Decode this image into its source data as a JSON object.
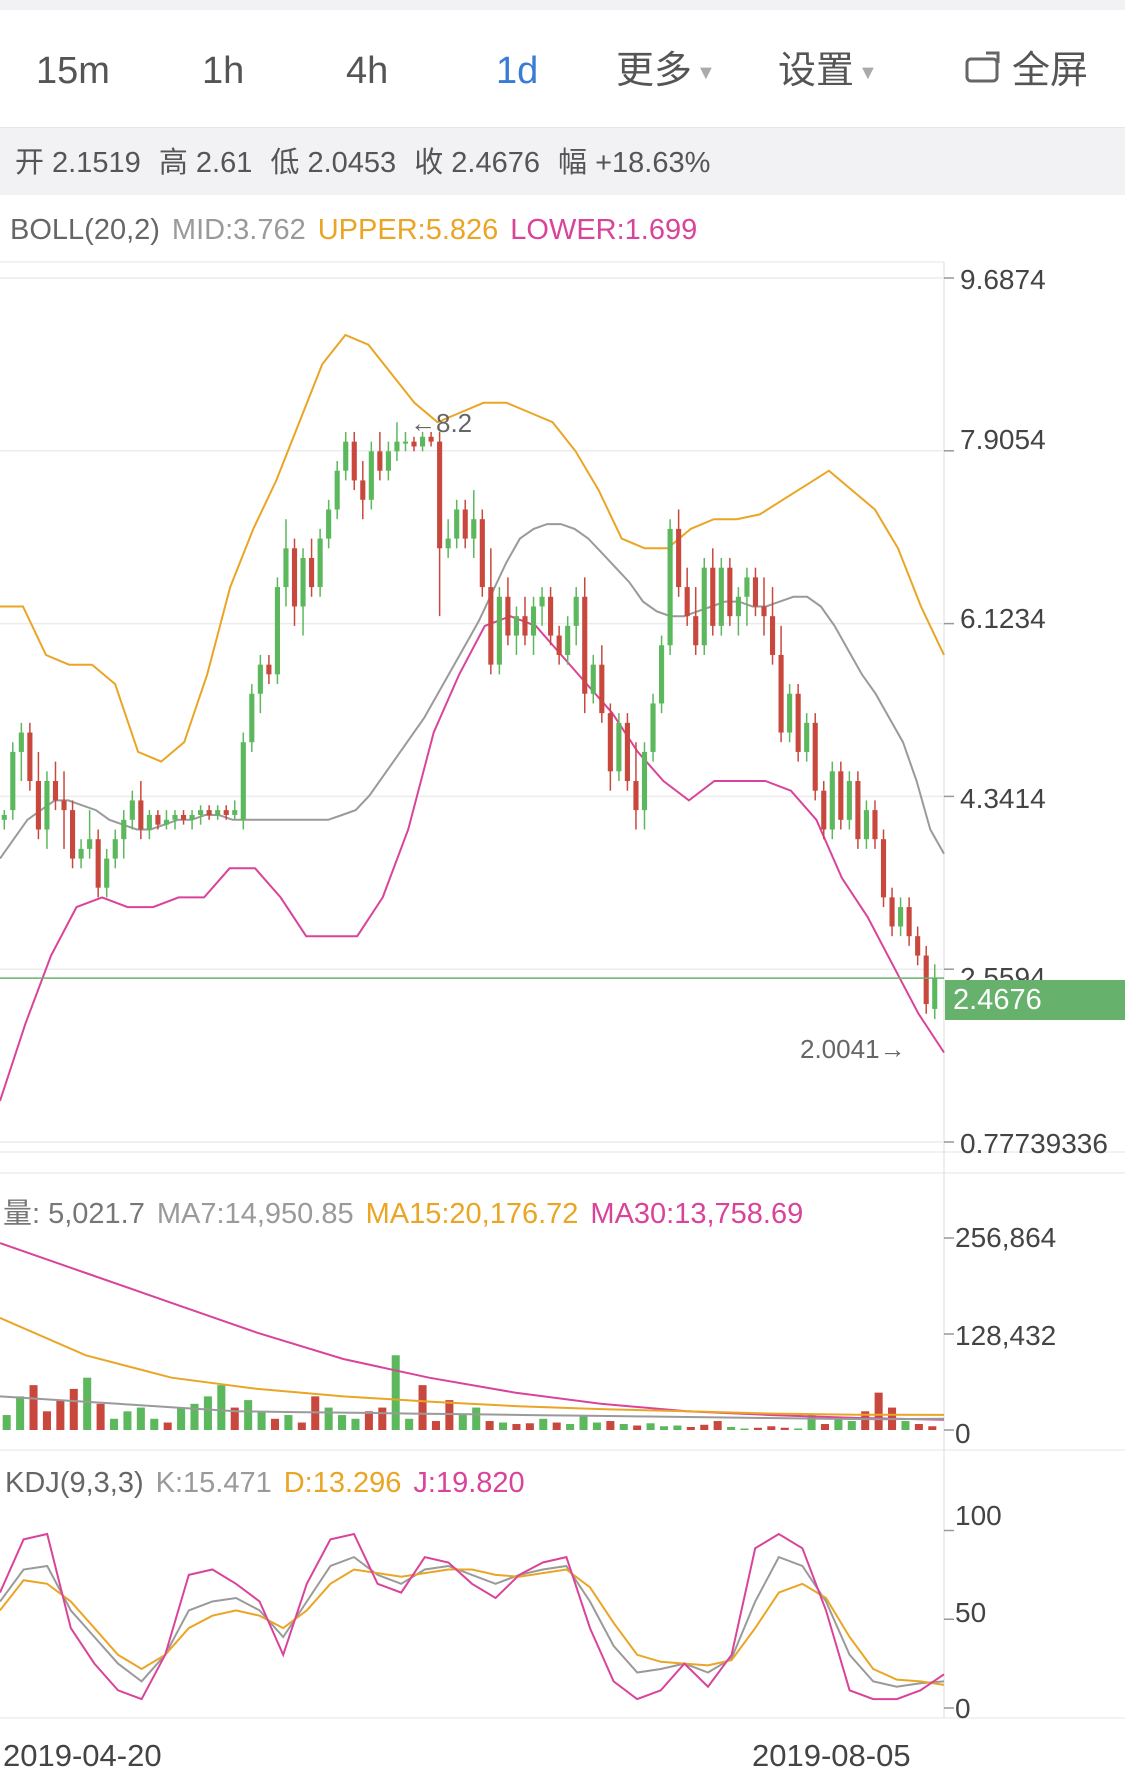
{
  "tabs": [
    {
      "label": "15m",
      "active": false
    },
    {
      "label": "1h",
      "active": false
    },
    {
      "label": "4h",
      "active": false
    },
    {
      "label": "1d",
      "active": true
    },
    {
      "label": "更多",
      "active": false
    },
    {
      "label": "设置",
      "active": false
    }
  ],
  "fullscreen_label": "全屏",
  "ohlc": {
    "open": "开 2.1519",
    "high": "高 2.61",
    "low": "低 2.0453",
    "close": "收 2.4676",
    "change": "幅 +18.63%"
  },
  "boll": {
    "label": "BOLL(20,2)",
    "mid": "MID:3.762",
    "upper": "UPPER:5.826",
    "lower": "LOWER:1.699"
  },
  "volume": {
    "label": "量: 5,021.7",
    "ma7": "MA7:14,950.85",
    "ma15": "MA15:20,176.72",
    "ma30": "MA30:13,758.69"
  },
  "kdj": {
    "label": "KDJ(9,3,3)",
    "k": "K:15.471",
    "d": "D:13.296",
    "j": "J:19.820"
  },
  "price_axis": [
    "9.6874",
    "7.9054",
    "6.1234",
    "4.3414",
    "2.5594",
    "0.77739336"
  ],
  "current_price": "2.4676",
  "high_marker": "←8.2",
  "low_marker": "2.0041→",
  "volume_axis": [
    "256,864",
    "128,432",
    "0"
  ],
  "kdj_axis": [
    "100",
    "50",
    "0"
  ],
  "dates": [
    "2019-04-20",
    "2019-08-05"
  ],
  "colors": {
    "up": "#5cb85c",
    "down": "#c9483d",
    "mid": "#9a9a9a",
    "upper": "#eaa525",
    "lower": "#d9449a",
    "active": "#3a7bd5",
    "gray": "#888888"
  },
  "chart_data": [
    {
      "type": "candlestick",
      "title": "",
      "ylim": [
        0.77739336,
        9.6874
      ],
      "y_ticks": [
        9.6874,
        7.9054,
        6.1234,
        4.3414,
        2.5594,
        0.77739336
      ],
      "x_labels": [
        "2019-04-20",
        "2019-08-05"
      ],
      "current_price": 2.4676,
      "high": 8.2,
      "low": 2.0041,
      "candles": [
        [
          4.1,
          4.2,
          4.0,
          4.15
        ],
        [
          4.2,
          4.9,
          4.1,
          4.8
        ],
        [
          4.8,
          5.1,
          4.5,
          5.0
        ],
        [
          5.0,
          5.1,
          4.4,
          4.5
        ],
        [
          4.5,
          4.8,
          3.9,
          4.0
        ],
        [
          4.0,
          4.6,
          3.8,
          4.5
        ],
        [
          4.5,
          4.7,
          4.2,
          4.3
        ],
        [
          4.3,
          4.6,
          3.8,
          4.2
        ],
        [
          4.2,
          4.3,
          3.6,
          3.7
        ],
        [
          3.7,
          3.9,
          3.6,
          3.8
        ],
        [
          3.8,
          4.2,
          3.7,
          3.9
        ],
        [
          3.9,
          4.0,
          3.3,
          3.4
        ],
        [
          3.4,
          3.8,
          3.3,
          3.7
        ],
        [
          3.7,
          4.0,
          3.6,
          3.9
        ],
        [
          3.9,
          4.2,
          3.7,
          4.1
        ],
        [
          4.1,
          4.4,
          4.0,
          4.3
        ],
        [
          4.3,
          4.5,
          3.9,
          4.0
        ],
        [
          4.0,
          4.2,
          3.9,
          4.15
        ],
        [
          4.15,
          4.2,
          4.0,
          4.05
        ],
        [
          4.05,
          4.2,
          4.0,
          4.1
        ],
        [
          4.1,
          4.2,
          4.0,
          4.15
        ],
        [
          4.15,
          4.2,
          4.05,
          4.1
        ],
        [
          4.1,
          4.2,
          4.0,
          4.15
        ],
        [
          4.15,
          4.25,
          4.05,
          4.2
        ],
        [
          4.2,
          4.25,
          4.1,
          4.15
        ],
        [
          4.15,
          4.25,
          4.1,
          4.2
        ],
        [
          4.2,
          4.25,
          4.1,
          4.15
        ],
        [
          4.15,
          4.3,
          4.1,
          4.2
        ],
        [
          4.1,
          5.0,
          4.0,
          4.9
        ],
        [
          4.9,
          5.5,
          4.8,
          5.4
        ],
        [
          5.4,
          5.8,
          5.2,
          5.7
        ],
        [
          5.7,
          5.8,
          5.5,
          5.6
        ],
        [
          5.6,
          6.6,
          5.5,
          6.5
        ],
        [
          6.5,
          7.2,
          6.3,
          6.9
        ],
        [
          6.9,
          7.0,
          6.1,
          6.3
        ],
        [
          6.3,
          6.9,
          6.0,
          6.8
        ],
        [
          6.8,
          7.0,
          6.4,
          6.5
        ],
        [
          6.5,
          7.1,
          6.4,
          7.0
        ],
        [
          7.0,
          7.4,
          6.9,
          7.3
        ],
        [
          7.3,
          7.8,
          7.2,
          7.7
        ],
        [
          7.7,
          8.1,
          7.6,
          8.0
        ],
        [
          8.0,
          8.1,
          7.5,
          7.6
        ],
        [
          7.6,
          7.8,
          7.2,
          7.4
        ],
        [
          7.4,
          8.0,
          7.3,
          7.9
        ],
        [
          7.9,
          8.1,
          7.6,
          7.7
        ],
        [
          7.7,
          8.0,
          7.6,
          7.9
        ],
        [
          7.9,
          8.2,
          7.8,
          8.0
        ],
        [
          8.0,
          8.1,
          7.9,
          8.0
        ],
        [
          8.0,
          8.05,
          7.9,
          7.95
        ],
        [
          7.95,
          8.1,
          7.9,
          8.05
        ],
        [
          8.05,
          8.1,
          7.95,
          8.0
        ],
        [
          8.0,
          8.1,
          6.2,
          6.9
        ],
        [
          6.9,
          7.2,
          6.8,
          7.0
        ],
        [
          7.0,
          7.4,
          6.9,
          7.3
        ],
        [
          7.3,
          7.4,
          6.9,
          7.0
        ],
        [
          7.0,
          7.5,
          6.8,
          7.2
        ],
        [
          7.2,
          7.3,
          6.4,
          6.5
        ],
        [
          6.5,
          6.9,
          5.6,
          5.7
        ],
        [
          5.7,
          6.5,
          5.6,
          6.4
        ],
        [
          6.4,
          6.6,
          5.9,
          6.0
        ],
        [
          6.0,
          6.3,
          5.8,
          6.2
        ],
        [
          6.2,
          6.4,
          5.9,
          6.0
        ],
        [
          6.0,
          6.4,
          5.8,
          6.3
        ],
        [
          6.3,
          6.5,
          6.1,
          6.4
        ],
        [
          6.4,
          6.5,
          5.9,
          6.0
        ],
        [
          6.0,
          6.1,
          5.7,
          5.8
        ],
        [
          5.8,
          6.2,
          5.7,
          6.1
        ],
        [
          6.1,
          6.5,
          5.9,
          6.4
        ],
        [
          6.4,
          6.6,
          5.2,
          5.4
        ],
        [
          5.4,
          5.8,
          5.3,
          5.7
        ],
        [
          5.7,
          5.9,
          5.1,
          5.2
        ],
        [
          5.2,
          5.3,
          4.4,
          4.6
        ],
        [
          4.6,
          5.2,
          4.5,
          5.1
        ],
        [
          5.1,
          5.2,
          4.4,
          4.5
        ],
        [
          4.5,
          4.9,
          4.0,
          4.2
        ],
        [
          4.2,
          4.9,
          4.0,
          4.8
        ],
        [
          4.8,
          5.4,
          4.7,
          5.3
        ],
        [
          5.3,
          6.0,
          5.2,
          5.9
        ],
        [
          5.9,
          7.2,
          5.8,
          7.1
        ],
        [
          7.1,
          7.3,
          6.4,
          6.5
        ],
        [
          6.5,
          6.7,
          6.1,
          6.2
        ],
        [
          6.2,
          6.5,
          5.8,
          5.9
        ],
        [
          5.9,
          6.8,
          5.8,
          6.7
        ],
        [
          6.7,
          6.9,
          6.0,
          6.1
        ],
        [
          6.1,
          6.8,
          6.0,
          6.7
        ],
        [
          6.7,
          6.8,
          6.1,
          6.2
        ],
        [
          6.2,
          6.5,
          6.0,
          6.4
        ],
        [
          6.4,
          6.7,
          6.1,
          6.6
        ],
        [
          6.6,
          6.7,
          6.2,
          6.3
        ],
        [
          6.3,
          6.6,
          6.0,
          6.2
        ],
        [
          6.2,
          6.5,
          5.7,
          5.8
        ],
        [
          5.8,
          6.1,
          4.9,
          5.0
        ],
        [
          5.0,
          5.5,
          4.9,
          5.4
        ],
        [
          5.4,
          5.5,
          4.7,
          4.8
        ],
        [
          4.8,
          5.2,
          4.7,
          5.1
        ],
        [
          5.1,
          5.2,
          4.3,
          4.4
        ],
        [
          4.4,
          4.5,
          3.9,
          4.0
        ],
        [
          4.0,
          4.7,
          3.9,
          4.6
        ],
        [
          4.6,
          4.7,
          4.0,
          4.1
        ],
        [
          4.1,
          4.6,
          4.0,
          4.5
        ],
        [
          4.5,
          4.6,
          3.8,
          3.9
        ],
        [
          3.9,
          4.3,
          3.8,
          4.2
        ],
        [
          4.2,
          4.3,
          3.8,
          3.9
        ],
        [
          3.9,
          4.0,
          3.2,
          3.3
        ],
        [
          3.3,
          3.4,
          2.9,
          3.0
        ],
        [
          3.0,
          3.3,
          2.9,
          3.2
        ],
        [
          3.2,
          3.3,
          2.8,
          2.9
        ],
        [
          2.9,
          3.0,
          2.6,
          2.7
        ],
        [
          2.7,
          2.8,
          2.1,
          2.2
        ],
        [
          2.15,
          2.61,
          2.0453,
          2.4676
        ]
      ],
      "mid": [
        3.7,
        3.9,
        4.1,
        4.2,
        4.3,
        4.3,
        4.25,
        4.2,
        4.1,
        4.05,
        4.0,
        4.0,
        4.05,
        4.1,
        4.1,
        4.15,
        4.15,
        4.1,
        4.1,
        4.1,
        4.1,
        4.1,
        4.1,
        4.1,
        4.1,
        4.15,
        4.2,
        4.35,
        4.55,
        4.75,
        4.95,
        5.15,
        5.4,
        5.65,
        5.9,
        6.15,
        6.45,
        6.75,
        7.0,
        7.1,
        7.15,
        7.15,
        7.1,
        7.0,
        6.85,
        6.7,
        6.55,
        6.35,
        6.25,
        6.2,
        6.2,
        6.25,
        6.3,
        6.35,
        6.35,
        6.3,
        6.3,
        6.35,
        6.4,
        6.4,
        6.3,
        6.1,
        5.85,
        5.6,
        5.4,
        5.15,
        4.9,
        4.5,
        4.0,
        3.75
      ],
      "upper": [
        6.3,
        6.3,
        5.8,
        5.7,
        5.7,
        5.5,
        4.8,
        4.7,
        4.9,
        5.6,
        6.5,
        7.1,
        7.6,
        8.2,
        8.8,
        9.1,
        9.0,
        8.7,
        8.4,
        8.2,
        8.3,
        8.4,
        8.4,
        8.3,
        8.2,
        7.9,
        7.5,
        7.0,
        6.9,
        6.9,
        7.1,
        7.2,
        7.2,
        7.25,
        7.4,
        7.55,
        7.7,
        7.5,
        7.3,
        6.9,
        6.3,
        5.8
      ],
      "lower": [
        1.2,
        2.0,
        2.7,
        3.2,
        3.3,
        3.2,
        3.2,
        3.3,
        3.3,
        3.6,
        3.6,
        3.3,
        2.9,
        2.9,
        2.9,
        3.3,
        4.0,
        5.0,
        5.6,
        6.1,
        6.2,
        6.1,
        5.8,
        5.5,
        5.2,
        4.8,
        4.5,
        4.3,
        4.5,
        4.5,
        4.5,
        4.4,
        4.1,
        3.5,
        3.1,
        2.6,
        2.1,
        1.7
      ]
    },
    {
      "type": "bar",
      "title": "",
      "ylim": [
        0,
        256864
      ],
      "y_ticks": [
        256864,
        128432,
        0
      ],
      "values": [
        20000,
        45000,
        60000,
        25000,
        40000,
        55000,
        70000,
        35000,
        15000,
        25000,
        30000,
        15000,
        10000,
        30000,
        35000,
        45000,
        60000,
        30000,
        40000,
        25000,
        15000,
        20000,
        10000,
        45000,
        30000,
        20000,
        15000,
        25000,
        30000,
        100000,
        15000,
        60000,
        12000,
        40000,
        20000,
        30000,
        12000,
        10000,
        8000,
        9000,
        15000,
        10000,
        8000,
        20000,
        10000,
        12000,
        8000,
        6000,
        9000,
        5000,
        6000,
        4000,
        7000,
        12000,
        4000,
        2000,
        3000,
        5000,
        3000,
        2000,
        20000,
        8000,
        15000,
        12000,
        25000,
        50000,
        30000,
        12000,
        8000,
        5000
      ],
      "ma7": [
        45000,
        40000,
        35000,
        30000,
        25000,
        24000,
        23000,
        22000,
        21000,
        20000,
        19000,
        18000,
        17000,
        16000,
        15000,
        14500,
        14950
      ],
      "ma15": [
        150000,
        100000,
        70000,
        55000,
        45000,
        38000,
        32000,
        28000,
        25000,
        22000,
        20500,
        20176
      ],
      "ma30": [
        250000,
        210000,
        170000,
        130000,
        95000,
        70000,
        50000,
        35000,
        25000,
        20000,
        16000,
        13758
      ]
    },
    {
      "type": "line",
      "title": "",
      "ylim": [
        0,
        120
      ],
      "y_ticks": [
        100,
        50,
        0
      ],
      "series": [
        {
          "name": "K",
          "values": [
            60,
            78,
            80,
            55,
            40,
            25,
            15,
            30,
            55,
            60,
            62,
            55,
            40,
            60,
            80,
            85,
            75,
            70,
            78,
            80,
            75,
            70,
            75,
            78,
            80,
            60,
            35,
            20,
            22,
            25,
            20,
            28,
            60,
            85,
            80,
            60,
            30,
            15,
            12,
            14,
            15
          ]
        },
        {
          "name": "D",
          "values": [
            55,
            72,
            70,
            60,
            45,
            30,
            22,
            30,
            45,
            52,
            55,
            52,
            45,
            55,
            70,
            78,
            76,
            74,
            76,
            78,
            78,
            75,
            74,
            76,
            78,
            68,
            48,
            30,
            26,
            25,
            24,
            27,
            45,
            65,
            70,
            62,
            40,
            22,
            16,
            15,
            13
          ]
        },
        {
          "name": "J",
          "values": [
            65,
            95,
            98,
            45,
            25,
            10,
            5,
            30,
            75,
            78,
            70,
            60,
            30,
            70,
            95,
            98,
            70,
            65,
            85,
            82,
            70,
            62,
            75,
            82,
            85,
            45,
            15,
            5,
            10,
            25,
            12,
            30,
            90,
            98,
            90,
            55,
            10,
            5,
            5,
            10,
            19
          ]
        }
      ]
    }
  ]
}
